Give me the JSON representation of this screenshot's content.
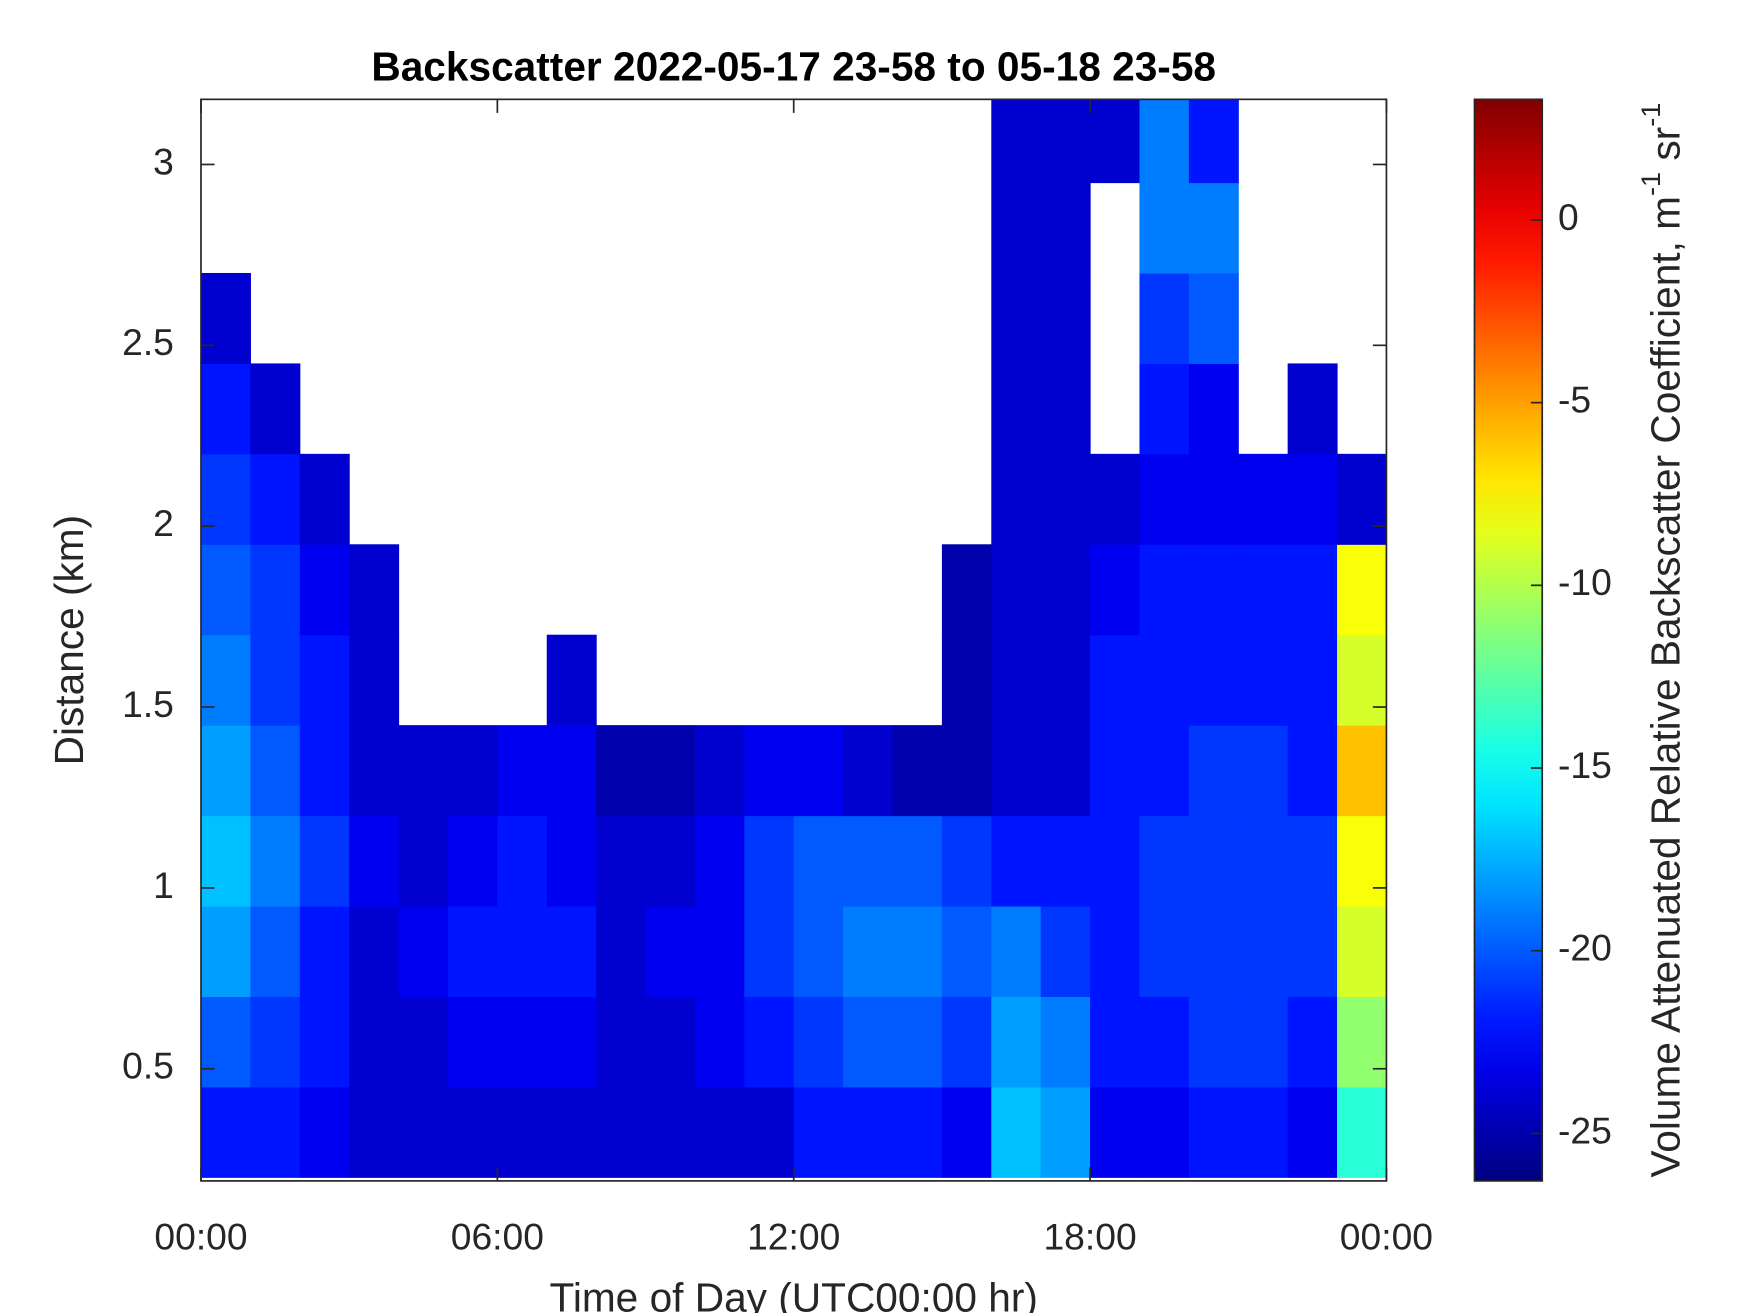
{
  "chart_data": {
    "type": "heatmap",
    "title": "Backscatter 2022-05-17 23-58 to 05-18 23-58",
    "xlabel": "Time of Day (UTC00:00 hr)",
    "ylabel": "Distance (km)",
    "colorbar_label": [
      "Volume Attenuated Relative Backscatter Coefficient, m",
      "-1",
      " sr",
      "-1"
    ],
    "colormap": "jet",
    "xlim": [
      0,
      24
    ],
    "xticks": [
      {
        "value": 0,
        "label": "00:00"
      },
      {
        "value": 6,
        "label": "06:00"
      },
      {
        "value": 12,
        "label": "12:00"
      },
      {
        "value": 18,
        "label": "18:00"
      },
      {
        "value": 24,
        "label": "00:00"
      }
    ],
    "ylim": [
      0.19,
      3.18
    ],
    "yticks": [
      0.5,
      1,
      1.5,
      2,
      2.5,
      3
    ],
    "clim": [
      -26.3,
      3.3
    ],
    "cticks": [
      0,
      -5,
      -10,
      -15,
      -20,
      -25
    ],
    "x_edges": [
      0,
      1,
      2,
      3,
      4,
      5,
      6,
      7,
      8,
      9,
      10,
      11,
      12,
      13,
      14,
      15,
      16,
      17,
      18,
      19,
      20,
      21,
      22,
      23,
      24
    ],
    "y_edges": [
      0.2,
      0.45,
      0.7,
      0.95,
      1.2,
      1.45,
      1.7,
      1.95,
      2.2,
      2.45,
      2.7,
      2.95,
      3.2
    ],
    "z": [
      [
        -22,
        -22,
        -23,
        -24,
        -24,
        -24,
        -24,
        -24,
        -24,
        -24,
        -24,
        -24,
        -22,
        -22,
        -22,
        -23,
        -17,
        -18,
        -23,
        -23,
        -22,
        -22,
        -23,
        -14
      ],
      [
        -20,
        -21,
        -22,
        -24,
        -24,
        -23,
        -23,
        -23,
        -24,
        -24,
        -23,
        -22,
        -21,
        -20,
        -20,
        -21,
        -18,
        -19,
        -22,
        -22,
        -21,
        -21,
        -22,
        -11
      ],
      [
        -18,
        -20,
        -22,
        -24,
        -23,
        -22,
        -22,
        -22,
        -24,
        -23,
        -23,
        -21,
        -20,
        -19,
        -19,
        -20,
        -19,
        -21,
        -22,
        -21,
        -21,
        -21,
        -21,
        -9
      ],
      [
        -17,
        -19,
        -21,
        -23,
        -24,
        -23,
        -22,
        -23,
        -24,
        -24,
        -23,
        -21,
        -20,
        -20,
        -20,
        -21,
        -22,
        -22,
        -22,
        -21,
        -21,
        -21,
        -21,
        -8
      ],
      [
        -18,
        -20,
        -22,
        -24,
        -24,
        -24,
        -23,
        -23,
        -25,
        -25,
        -24,
        -23,
        -23,
        -24,
        -25,
        -25,
        -24,
        -24,
        -22,
        -22,
        -21,
        -21,
        -22,
        -6
      ],
      [
        -19,
        -21,
        -22,
        -24,
        null,
        null,
        null,
        -24,
        null,
        null,
        null,
        null,
        null,
        null,
        null,
        -25,
        -24,
        -24,
        -22,
        -22,
        -22,
        -22,
        -22,
        -9
      ],
      [
        -20,
        -21,
        -23,
        -24,
        null,
        null,
        null,
        null,
        null,
        null,
        null,
        null,
        null,
        null,
        null,
        -25,
        -24,
        -24,
        -23,
        -22,
        -22,
        -22,
        -22,
        -8
      ],
      [
        -21,
        -22,
        -24,
        null,
        null,
        null,
        null,
        null,
        null,
        null,
        null,
        null,
        null,
        null,
        null,
        null,
        -24,
        -24,
        -24,
        -23,
        -23,
        -23,
        -23,
        -24
      ],
      [
        -22,
        -24,
        null,
        null,
        null,
        null,
        null,
        null,
        null,
        null,
        null,
        null,
        null,
        null,
        null,
        null,
        -24,
        -24,
        null,
        -22,
        -23,
        null,
        -24,
        null
      ],
      [
        -24,
        null,
        null,
        null,
        null,
        null,
        null,
        null,
        null,
        null,
        null,
        null,
        null,
        null,
        null,
        null,
        -24,
        -24,
        null,
        -21,
        -20,
        null,
        null,
        null
      ],
      [
        null,
        null,
        null,
        null,
        null,
        null,
        null,
        null,
        null,
        null,
        null,
        null,
        null,
        null,
        null,
        null,
        -24,
        -24,
        null,
        -19,
        -19,
        null,
        null,
        null
      ],
      [
        null,
        null,
        null,
        null,
        null,
        null,
        null,
        null,
        null,
        null,
        null,
        null,
        null,
        null,
        null,
        null,
        -24,
        -24,
        -24,
        -19,
        -22,
        null,
        null,
        null
      ]
    ]
  }
}
